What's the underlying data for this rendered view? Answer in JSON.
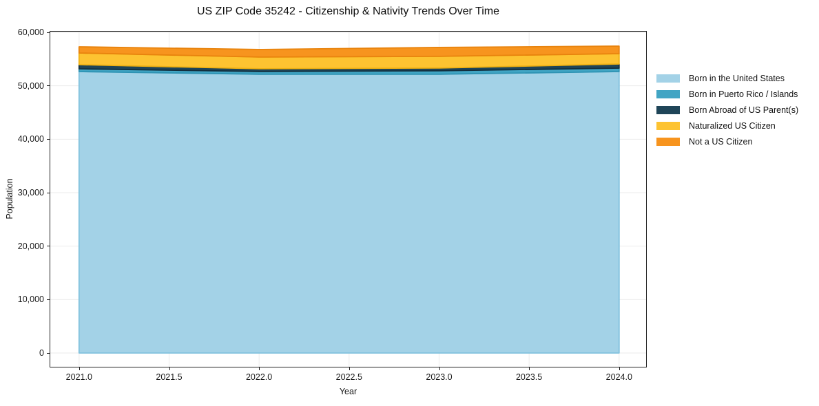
{
  "chart_data": {
    "type": "area",
    "stacked": true,
    "title": "US ZIP Code 35242 - Citizenship & Nativity Trends Over Time",
    "xlabel": "Year",
    "ylabel": "Population",
    "x": [
      2021,
      2022,
      2023,
      2024
    ],
    "series": [
      {
        "name": "Born in the United States",
        "color": "#A3D2E7",
        "edge": "#82C2DE",
        "values": [
          52660,
          52150,
          52150,
          52660
        ]
      },
      {
        "name": "Born in Puerto Rico / Islands",
        "color": "#41A5C4",
        "edge": "#2E93B3",
        "values": [
          515,
          515,
          645,
          645
        ]
      },
      {
        "name": "Born Abroad of US Parent(s)",
        "color": "#1F4558",
        "edge": "#132F3E",
        "values": [
          770,
          515,
          515,
          770
        ]
      },
      {
        "name": "Naturalized US Citizen",
        "color": "#FDC331",
        "edge": "#F0B112",
        "values": [
          2190,
          2190,
          2190,
          1930
        ]
      },
      {
        "name": "Not a US Citizen",
        "color": "#F7941E",
        "edge": "#E8830D",
        "values": [
          1160,
          1420,
          1675,
          1420
        ]
      }
    ],
    "totals": [
      57295,
      56790,
      57175,
      57425
    ],
    "xticks": {
      "values": [
        2021.0,
        2021.5,
        2022.0,
        2022.5,
        2023.0,
        2023.5,
        2024.0
      ],
      "labels": [
        "2021.0",
        "2021.5",
        "2022.0",
        "2022.5",
        "2023.0",
        "2023.5",
        "2024.0"
      ]
    },
    "yticks": {
      "values": [
        0,
        10000,
        20000,
        30000,
        40000,
        50000,
        60000
      ],
      "labels": [
        "0",
        "10,000",
        "20,000",
        "30,000",
        "40,000",
        "50,000",
        "60,000"
      ]
    },
    "xlim": [
      2021,
      2024
    ],
    "ylim": [
      0,
      60000
    ],
    "grid": true,
    "grid_color": "#ebebeb",
    "spine_color": "#1f1f1f",
    "legend_position": "right-outside"
  }
}
